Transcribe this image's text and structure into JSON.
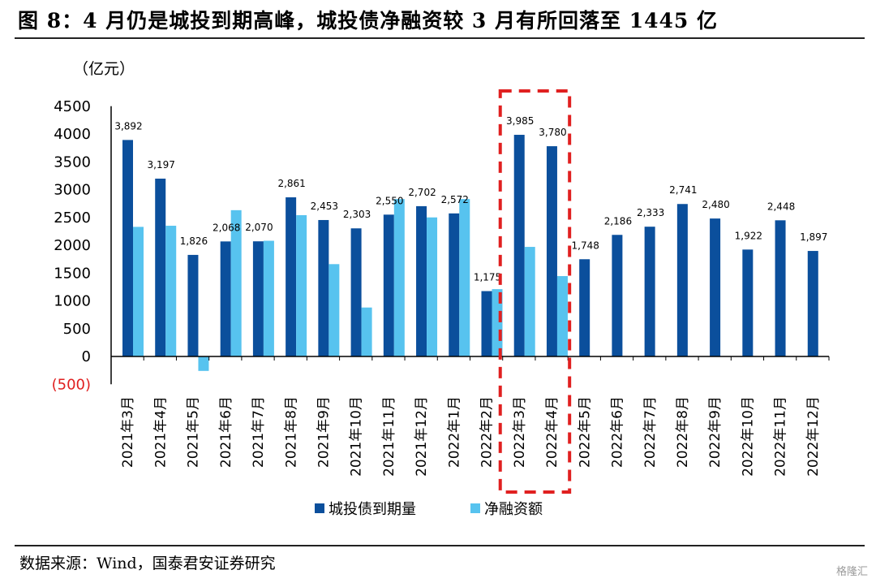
{
  "title": "图 8：4 月仍是城投到期高峰，城投债净融资较 3 月有所回落至 1445 亿",
  "source": "数据来源：Wind，国泰君安证券研究",
  "watermark": "格隆汇",
  "colors": {
    "maturity": "#0b4f9c",
    "net_financing": "#57c3ef",
    "highlight": "#e02020",
    "negative_tick": "#e02020"
  },
  "chart_data": {
    "type": "bar",
    "unit": "（亿元）",
    "categories": [
      "2021年3月",
      "2021年4月",
      "2021年5月",
      "2021年6月",
      "2021年7月",
      "2021年8月",
      "2021年9月",
      "2021年10月",
      "2021年11月",
      "2021年12月",
      "2022年1月",
      "2022年2月",
      "2022年3月",
      "2022年4月",
      "2022年5月",
      "2022年6月",
      "2022年7月",
      "2022年8月",
      "2022年9月",
      "2022年10月",
      "2022年11月",
      "2022年12月"
    ],
    "series": [
      {
        "name": "城投债到期量",
        "values": [
          3892,
          3197,
          1826,
          2068,
          2070,
          2861,
          2453,
          2303,
          2550,
          2702,
          2572,
          1175,
          3985,
          3780,
          1748,
          2186,
          2333,
          2741,
          2480,
          1922,
          2448,
          1897
        ]
      },
      {
        "name": "净融资额",
        "values": [
          2330,
          2350,
          -260,
          2630,
          2080,
          2540,
          1660,
          880,
          2830,
          2500,
          2830,
          1210,
          1970,
          1445,
          null,
          null,
          null,
          null,
          null,
          null,
          null,
          null
        ]
      }
    ],
    "data_labels": [
      "3,892",
      "3,197",
      "1,826",
      "2,068",
      "2,070",
      "2,861",
      "2,453",
      "2,303",
      "2,550",
      "2,702",
      "2,572",
      "1,175",
      "3,985",
      "3,780",
      "1,748",
      "2,186",
      "2,333",
      "2,741",
      "2,480",
      "1,922",
      "2,448",
      "1,897"
    ],
    "y_ticks": [
      "4500",
      "4000",
      "3500",
      "3000",
      "2500",
      "2000",
      "1500",
      "1000",
      "500",
      "0",
      "(500)"
    ],
    "ylim": [
      -500,
      4500
    ],
    "legend_position": "bottom",
    "grid": false,
    "highlight_categories": [
      "2022年3月",
      "2022年4月"
    ]
  }
}
